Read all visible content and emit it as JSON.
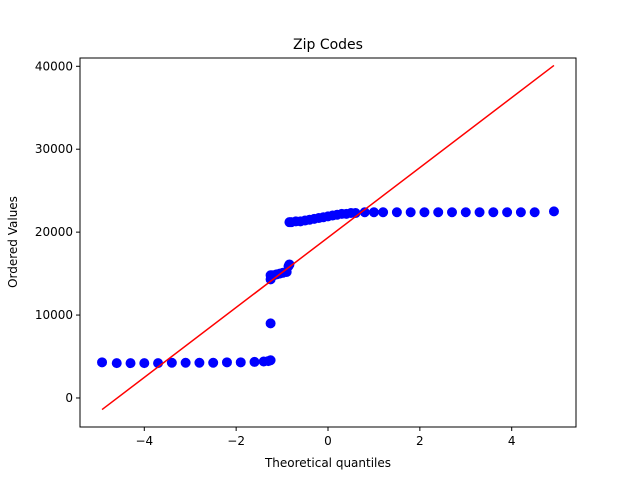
{
  "chart_data": {
    "type": "scatter",
    "title": "Zip Codes",
    "xlabel": "Theoretical quantiles",
    "ylabel": "Ordered Values",
    "xlim": [
      -5.4,
      5.4
    ],
    "ylim": [
      -3500,
      41000
    ],
    "xticks": [
      -4,
      -2,
      0,
      2,
      4
    ],
    "xtick_labels": [
      "−4",
      "−2",
      "0",
      "2",
      "4"
    ],
    "yticks": [
      0,
      10000,
      20000,
      30000,
      40000
    ],
    "ytick_labels": [
      "0",
      "10000",
      "20000",
      "30000",
      "40000"
    ],
    "grid": false,
    "legend": "none",
    "colors": {
      "points": "#0000ff",
      "fit_line": "#ff0000"
    },
    "series": [
      {
        "type": "scatter",
        "x": [
          -4.92,
          -4.6,
          -4.3,
          -4.0,
          -3.7,
          -3.4,
          -3.1,
          -2.8,
          -2.5,
          -2.2,
          -1.9,
          -1.6,
          -1.4,
          -1.3,
          -1.25,
          -1.25,
          -1.25,
          -1.25,
          -1.22,
          -1.18,
          -1.12,
          -1.05,
          -0.98,
          -0.9,
          -0.86,
          -0.84,
          -0.84,
          -0.8,
          -0.7,
          -0.6,
          -0.5,
          -0.4,
          -0.3,
          -0.2,
          -0.1,
          0.0,
          0.1,
          0.2,
          0.3,
          0.4,
          0.5,
          0.6,
          0.8,
          1.0,
          1.2,
          1.5,
          1.8,
          2.1,
          2.4,
          2.7,
          3.0,
          3.3,
          3.6,
          3.9,
          4.2,
          4.5,
          4.92
        ],
        "y": [
          4300,
          4200,
          4200,
          4200,
          4200,
          4250,
          4250,
          4250,
          4250,
          4300,
          4300,
          4350,
          4400,
          4450,
          4550,
          9000,
          14300,
          14800,
          14800,
          14800,
          14900,
          15000,
          15100,
          15200,
          15900,
          16100,
          21200,
          21200,
          21300,
          21300,
          21400,
          21500,
          21600,
          21700,
          21800,
          21900,
          22000,
          22100,
          22200,
          22200,
          22300,
          22300,
          22400,
          22400,
          22400,
          22400,
          22400,
          22400,
          22400,
          22400,
          22400,
          22400,
          22400,
          22400,
          22400,
          22400,
          22500
        ]
      },
      {
        "type": "line",
        "x": [
          -4.92,
          4.92
        ],
        "y": [
          -1400,
          40100
        ]
      }
    ]
  }
}
